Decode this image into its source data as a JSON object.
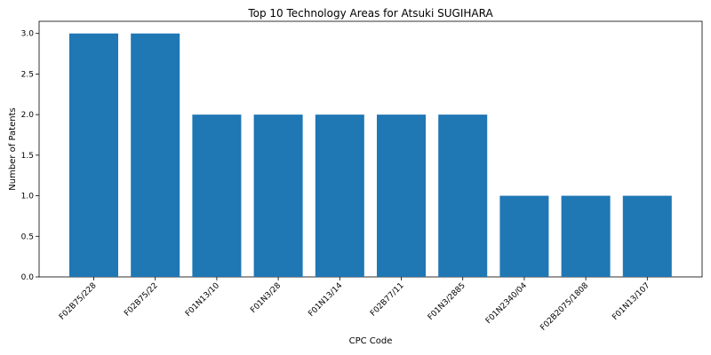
{
  "chart_data": {
    "type": "bar",
    "title": "Top 10 Technology Areas for Atsuki SUGIHARA",
    "xlabel": "CPC Code",
    "ylabel": "Number of Patents",
    "categories": [
      "F02B75/228",
      "F02B75/22",
      "F01N13/10",
      "F01N3/28",
      "F01N13/14",
      "F02B77/11",
      "F01N3/2885",
      "F01N2340/04",
      "F02B2075/1808",
      "F01N13/107"
    ],
    "values": [
      3,
      3,
      2,
      2,
      2,
      2,
      2,
      1,
      1,
      1
    ],
    "ylim": [
      0,
      3.15
    ],
    "yticks": [
      "0.0",
      "0.5",
      "1.0",
      "1.5",
      "2.0",
      "2.5",
      "3.0"
    ],
    "grid": false,
    "bar_color": "#1f77b4"
  }
}
